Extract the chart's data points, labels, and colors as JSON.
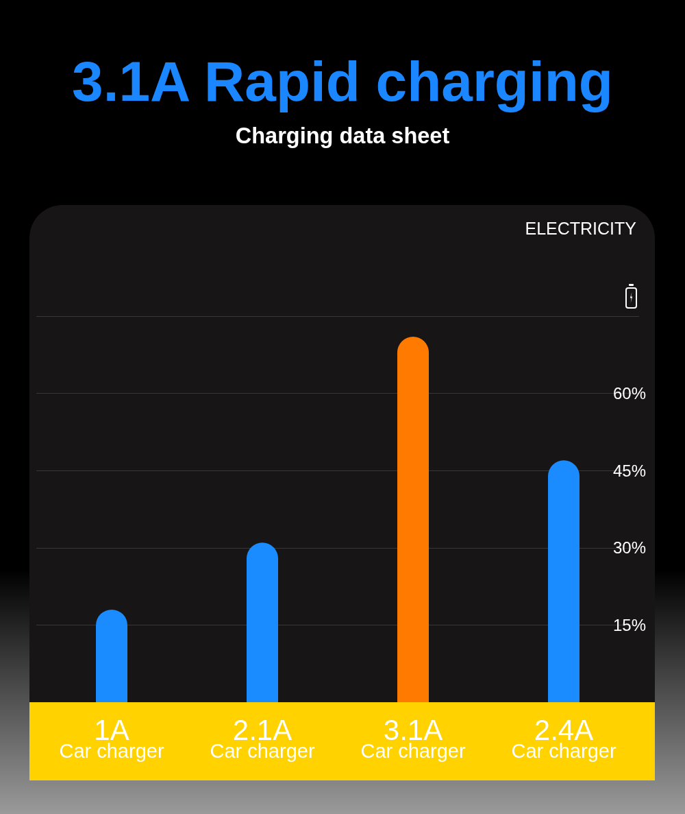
{
  "chart_data": {
    "type": "bar",
    "title": "3.1A Rapid charging",
    "subtitle": "Charging data sheet",
    "annotations": [
      "ELECTRICITY"
    ],
    "categories": [
      "1A\nCar charger",
      "2.1A\nCar charger",
      "3.1A\nCar charger",
      "2.4A\nCar charger"
    ],
    "values": [
      18,
      31,
      71,
      47
    ],
    "colors": [
      "#1a8cff",
      "#1a8cff",
      "#ff7a00",
      "#1a8cff"
    ],
    "ylim": [
      0,
      75
    ],
    "yticks": [
      {
        "value": 15,
        "label": "15%"
      },
      {
        "value": 30,
        "label": "30%"
      },
      {
        "value": 45,
        "label": "45%"
      },
      {
        "value": 60,
        "label": "60%"
      },
      {
        "value": 75,
        "label": null
      }
    ],
    "grid": "y"
  }
}
